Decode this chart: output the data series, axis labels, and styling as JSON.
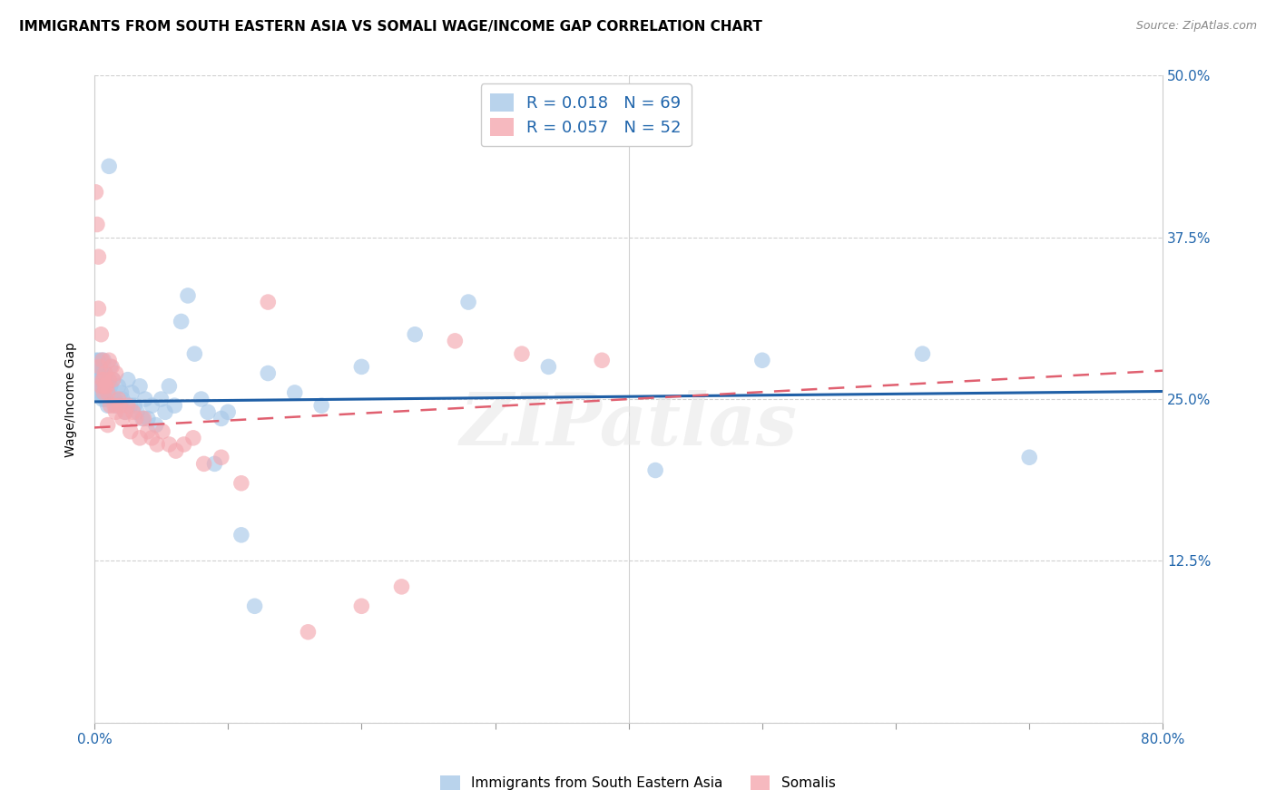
{
  "title": "IMMIGRANTS FROM SOUTH EASTERN ASIA VS SOMALI WAGE/INCOME GAP CORRELATION CHART",
  "source": "Source: ZipAtlas.com",
  "ylabel": "Wage/Income Gap",
  "xlim": [
    0.0,
    0.8
  ],
  "ylim": [
    0.0,
    0.5
  ],
  "yticks": [
    0.0,
    0.125,
    0.25,
    0.375,
    0.5
  ],
  "ytick_labels": [
    "",
    "12.5%",
    "25.0%",
    "37.5%",
    "50.0%"
  ],
  "xticks": [
    0.0,
    0.1,
    0.2,
    0.3,
    0.4,
    0.5,
    0.6,
    0.7,
    0.8
  ],
  "xtick_labels": [
    "0.0%",
    "",
    "",
    "",
    "",
    "",
    "",
    "",
    "80.0%"
  ],
  "title_fontsize": 11,
  "axis_label_fontsize": 10,
  "tick_fontsize": 11,
  "blue_color": "#a8c8e8",
  "pink_color": "#f4a8b0",
  "blue_line_color": "#1f5fa6",
  "pink_line_color": "#e06070",
  "watermark": "ZIPatlas",
  "legend_r_blue": "R = 0.018",
  "legend_n_blue": "N = 69",
  "legend_r_pink": "R = 0.057",
  "legend_n_pink": "N = 52",
  "blue_intercept": 0.248,
  "blue_slope": 0.01,
  "pink_intercept": 0.228,
  "pink_slope": 0.055,
  "blue_x": [
    0.001,
    0.001,
    0.002,
    0.002,
    0.002,
    0.003,
    0.003,
    0.004,
    0.004,
    0.005,
    0.005,
    0.005,
    0.006,
    0.006,
    0.007,
    0.007,
    0.008,
    0.008,
    0.009,
    0.009,
    0.01,
    0.01,
    0.011,
    0.012,
    0.012,
    0.013,
    0.014,
    0.015,
    0.016,
    0.018,
    0.02,
    0.021,
    0.023,
    0.025,
    0.027,
    0.028,
    0.03,
    0.032,
    0.034,
    0.036,
    0.038,
    0.04,
    0.043,
    0.046,
    0.05,
    0.053,
    0.056,
    0.06,
    0.065,
    0.07,
    0.075,
    0.08,
    0.085,
    0.09,
    0.095,
    0.1,
    0.11,
    0.12,
    0.13,
    0.15,
    0.17,
    0.2,
    0.24,
    0.28,
    0.34,
    0.42,
    0.5,
    0.62,
    0.7
  ],
  "blue_y": [
    0.27,
    0.28,
    0.265,
    0.275,
    0.255,
    0.28,
    0.27,
    0.265,
    0.275,
    0.26,
    0.28,
    0.255,
    0.27,
    0.25,
    0.28,
    0.255,
    0.27,
    0.25,
    0.265,
    0.25,
    0.26,
    0.245,
    0.43,
    0.275,
    0.26,
    0.25,
    0.265,
    0.25,
    0.245,
    0.26,
    0.255,
    0.25,
    0.24,
    0.265,
    0.245,
    0.255,
    0.245,
    0.24,
    0.26,
    0.235,
    0.25,
    0.235,
    0.245,
    0.23,
    0.25,
    0.24,
    0.26,
    0.245,
    0.31,
    0.33,
    0.285,
    0.25,
    0.24,
    0.2,
    0.235,
    0.24,
    0.145,
    0.09,
    0.27,
    0.255,
    0.245,
    0.275,
    0.3,
    0.325,
    0.275,
    0.195,
    0.28,
    0.285,
    0.205
  ],
  "pink_x": [
    0.001,
    0.002,
    0.003,
    0.003,
    0.004,
    0.005,
    0.005,
    0.006,
    0.006,
    0.007,
    0.007,
    0.008,
    0.008,
    0.009,
    0.01,
    0.01,
    0.011,
    0.011,
    0.012,
    0.013,
    0.014,
    0.015,
    0.016,
    0.016,
    0.018,
    0.019,
    0.021,
    0.023,
    0.025,
    0.027,
    0.029,
    0.031,
    0.034,
    0.037,
    0.04,
    0.043,
    0.047,
    0.051,
    0.056,
    0.061,
    0.067,
    0.074,
    0.082,
    0.095,
    0.11,
    0.13,
    0.16,
    0.2,
    0.23,
    0.27,
    0.32,
    0.38
  ],
  "pink_y": [
    0.41,
    0.385,
    0.32,
    0.36,
    0.275,
    0.3,
    0.26,
    0.28,
    0.265,
    0.265,
    0.255,
    0.26,
    0.27,
    0.26,
    0.255,
    0.23,
    0.28,
    0.265,
    0.245,
    0.275,
    0.265,
    0.245,
    0.24,
    0.27,
    0.25,
    0.245,
    0.235,
    0.24,
    0.245,
    0.225,
    0.24,
    0.235,
    0.22,
    0.235,
    0.225,
    0.22,
    0.215,
    0.225,
    0.215,
    0.21,
    0.215,
    0.22,
    0.2,
    0.205,
    0.185,
    0.325,
    0.07,
    0.09,
    0.105,
    0.295,
    0.285,
    0.28
  ]
}
